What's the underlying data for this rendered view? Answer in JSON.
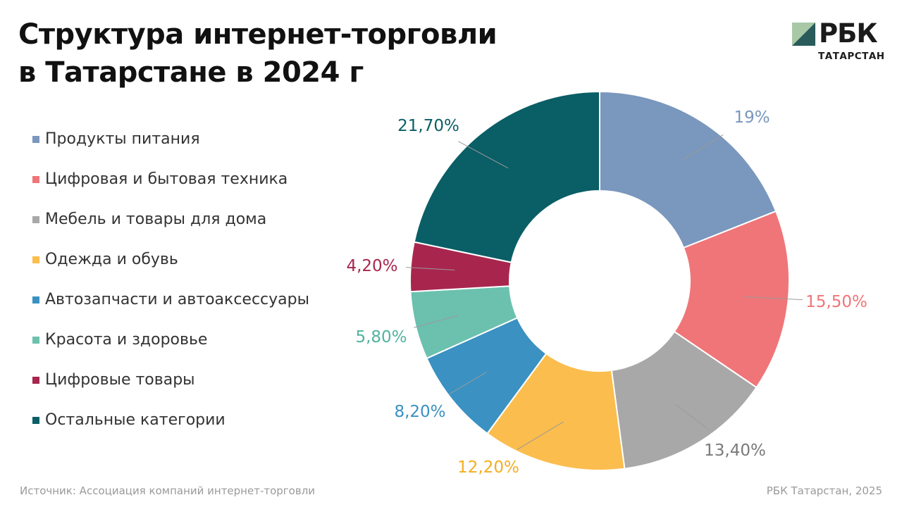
{
  "header": {
    "title_line1": "Структура интернет-торговли",
    "title_line2": "в Татарстане в 2024 г"
  },
  "logo": {
    "name": "РБК",
    "region": "ТАТАРСТАН",
    "colors": [
      "#a8c8a6",
      "#2a5b5b"
    ]
  },
  "footer": {
    "source": "Источник: Ассоциация компаний интернет-торговли",
    "credit": "РБК Татарстан, 2025"
  },
  "chart_data": {
    "type": "donut",
    "categories": [
      "Продукты питания",
      "Цифровая и бытовая техника",
      "Мебель и товары для дома",
      "Одежда и обувь",
      "Автозапчасти и автоаксессуары",
      "Красота и здоровье",
      "Цифровые товары",
      "Остальные категории"
    ],
    "values": [
      19,
      15.5,
      13.4,
      12.2,
      8.2,
      5.8,
      4.2,
      21.7
    ],
    "labels": [
      "19%",
      "15,50%",
      "13,40%",
      "12,20%",
      "8,20%",
      "5,80%",
      "4,20%",
      "21,70%"
    ],
    "colors": [
      "#7a97bd",
      "#f07578",
      "#a8a8a8",
      "#fbbd4e",
      "#3a91c2",
      "#6bc1ae",
      "#a8264e",
      "#0a5e66"
    ],
    "label_colors": [
      "#7a97bd",
      "#f07578",
      "#7a7a7a",
      "#f5ad1e",
      "#3a91c2",
      "#52b39e",
      "#a8264e",
      "#0a5e66"
    ],
    "legend_position": "left"
  }
}
